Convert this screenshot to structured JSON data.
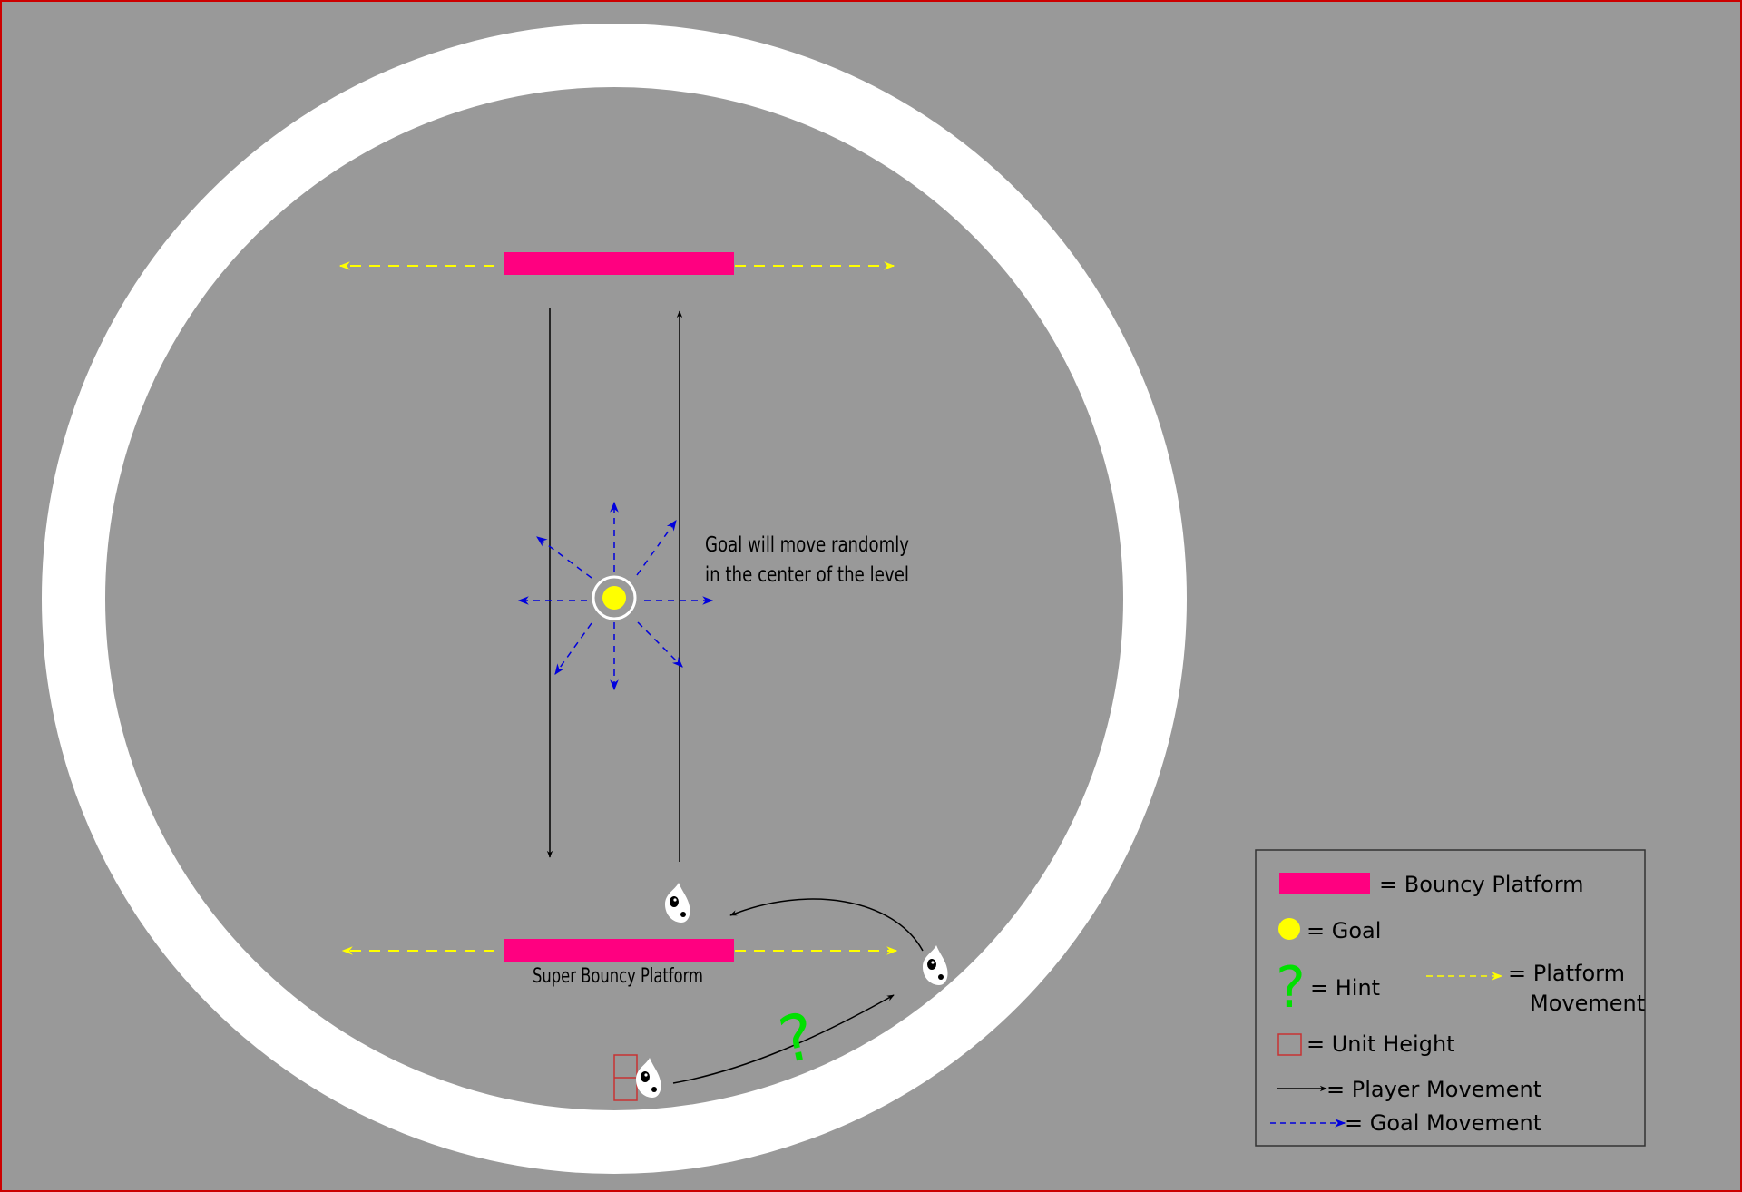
{
  "colors": {
    "background": "#999999",
    "ring": "#ffffff",
    "platform": "#ff0080",
    "goal": "#ffff00",
    "hint": "#00e000",
    "unit_height": "#c83232",
    "player_arrow": "#000000",
    "goal_arrow": "#0000dd",
    "platform_arrow": "#ffff00",
    "frame_border": "#cc0000"
  },
  "annotations": {
    "goal_note_line1": "Goal will move randomly",
    "goal_note_line2": "in the center of the level",
    "super_platform_label": "Super Bouncy Platform",
    "hint_glyph": "?"
  },
  "legend": {
    "bouncy_platform": "= Bouncy Platform",
    "goal": "= Goal",
    "hint": "= Hint",
    "hint_glyph": "?",
    "platform_movement_line1": "= Platform",
    "platform_movement_line2": "Movement",
    "unit_height": "= Unit Height",
    "player_movement": "= Player Movement",
    "goal_movement": "= Goal Movement"
  },
  "icons": [
    "player-character-icon",
    "goal-icon",
    "hint-icon",
    "unit-height-icon"
  ]
}
